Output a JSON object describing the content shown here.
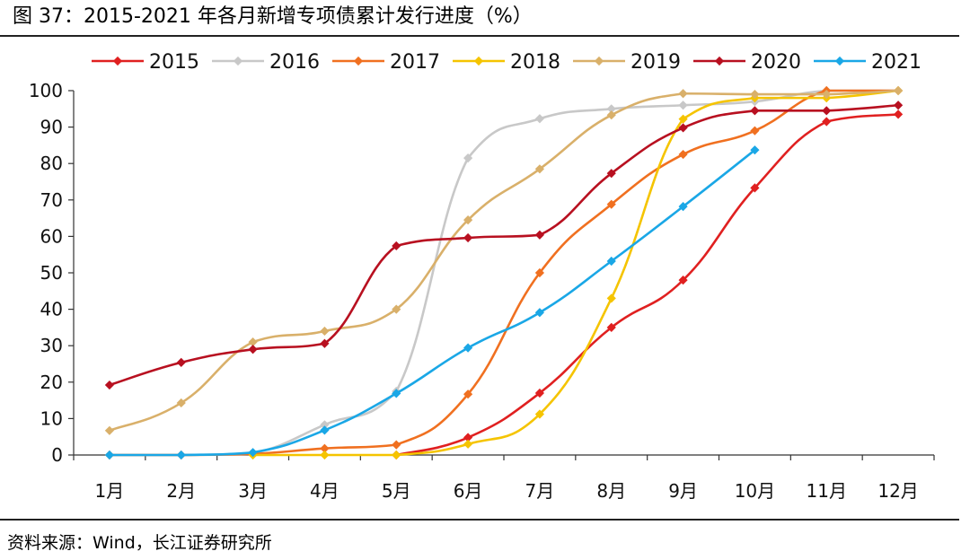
{
  "figure": {
    "title": "图 37：2015-2021 年各月新增专项债累计发行进度（%）",
    "source": "资料来源：Wind，长江证券研究所"
  },
  "chart_data": {
    "type": "line",
    "title": "图 37：2015-2021 年各月新增专项债累计发行进度（%）",
    "xlabel": "",
    "ylabel": "",
    "ylim": [
      0,
      100
    ],
    "yticks": [
      0,
      10,
      20,
      30,
      40,
      50,
      60,
      70,
      80,
      90,
      100
    ],
    "categories": [
      "1月",
      "2月",
      "3月",
      "4月",
      "5月",
      "6月",
      "7月",
      "8月",
      "9月",
      "10月",
      "11月",
      "12月"
    ],
    "legend_position": "top",
    "series": [
      {
        "name": "2015",
        "color": "#e02020",
        "values": [
          null,
          null,
          null,
          null,
          0,
          4.8,
          17,
          35,
          48,
          73.3,
          91.5,
          93.5
        ]
      },
      {
        "name": "2016",
        "color": "#c8c8c8",
        "values": [
          0,
          0,
          0.5,
          8.3,
          17.5,
          81.5,
          92.3,
          95,
          96,
          97,
          100,
          100
        ]
      },
      {
        "name": "2017",
        "color": "#f07020",
        "values": [
          0,
          0,
          0.3,
          1.8,
          2.8,
          16.7,
          50,
          68.8,
          82.5,
          89,
          100,
          100
        ]
      },
      {
        "name": "2018",
        "color": "#f5c400",
        "values": [
          null,
          null,
          0,
          0,
          0,
          3,
          11.2,
          43,
          92.2,
          98,
          98,
          100
        ]
      },
      {
        "name": "2019",
        "color": "#d9b06a",
        "values": [
          6.7,
          14.3,
          31,
          34,
          40,
          64.5,
          78.5,
          93.3,
          99.2,
          99,
          99,
          100
        ]
      },
      {
        "name": "2020",
        "color": "#b81020",
        "values": [
          19.2,
          25.4,
          29,
          30.6,
          57.4,
          59.6,
          60.4,
          77.3,
          89.8,
          94.5,
          94.5,
          96
        ]
      },
      {
        "name": "2021",
        "color": "#1aa7e6",
        "values": [
          0,
          0,
          0.7,
          6.8,
          16.9,
          29.4,
          39.1,
          53.2,
          68.2,
          83.7,
          null,
          null
        ]
      }
    ]
  }
}
